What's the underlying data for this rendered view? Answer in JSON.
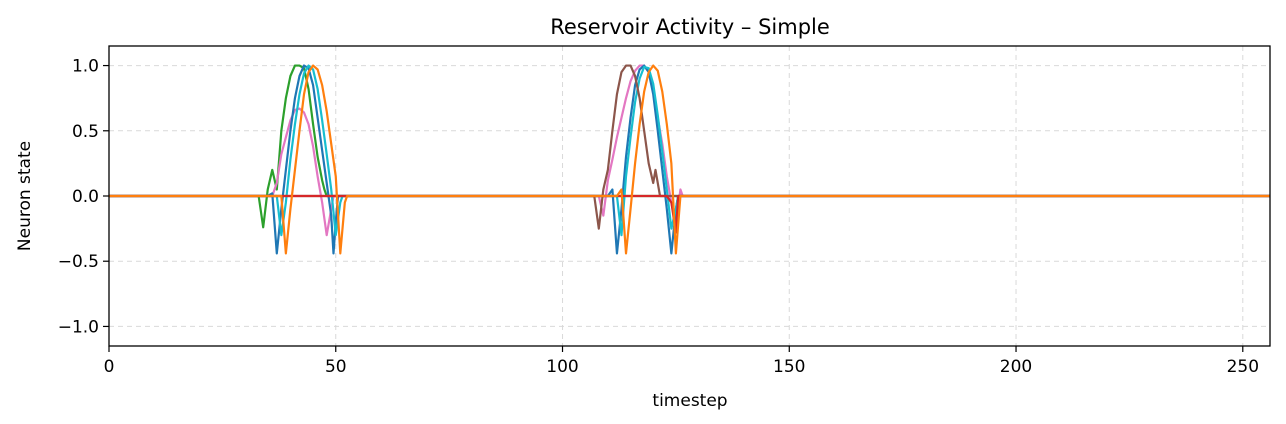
{
  "chart_data": {
    "type": "line",
    "title": "Reservoir Activity – Simple",
    "xlabel": "timestep",
    "ylabel": "Neuron state",
    "xlim": [
      0,
      256
    ],
    "ylim": [
      -1.15,
      1.15
    ],
    "xticks": [
      0,
      50,
      100,
      150,
      200,
      250
    ],
    "yticks": [
      -1.0,
      -0.5,
      0.0,
      0.5,
      1.0
    ],
    "ytick_labels": [
      "−1.0",
      "−0.5",
      "0.0",
      "0.5",
      "1.0"
    ],
    "grid": true,
    "legend": "none",
    "series": [
      {
        "color": "#2ca02c",
        "points": [
          [
            0,
            0
          ],
          [
            33,
            0
          ],
          [
            34,
            -0.24
          ],
          [
            35,
            0.05
          ],
          [
            36,
            0.2
          ],
          [
            37,
            0.05
          ],
          [
            38,
            0.5
          ],
          [
            39,
            0.75
          ],
          [
            40,
            0.92
          ],
          [
            41,
            1.0
          ],
          [
            42,
            1.0
          ],
          [
            43,
            0.98
          ],
          [
            44,
            0.82
          ],
          [
            45,
            0.55
          ],
          [
            46,
            0.3
          ],
          [
            47,
            0.12
          ],
          [
            47.5,
            0.05
          ],
          [
            48,
            0
          ],
          [
            256,
            0
          ]
        ]
      },
      {
        "color": "#e377c2",
        "points": [
          [
            0,
            0
          ],
          [
            36,
            0
          ],
          [
            37,
            0.1
          ],
          [
            38,
            0.32
          ],
          [
            39,
            0.45
          ],
          [
            40,
            0.58
          ],
          [
            41,
            0.66
          ],
          [
            42,
            0.67
          ],
          [
            43,
            0.64
          ],
          [
            44,
            0.55
          ],
          [
            45,
            0.38
          ],
          [
            46,
            0.15
          ],
          [
            47,
            -0.05
          ],
          [
            48,
            -0.3
          ],
          [
            49,
            -0.1
          ],
          [
            49.5,
            0
          ],
          [
            108,
            0
          ],
          [
            109,
            -0.15
          ],
          [
            110,
            0.12
          ],
          [
            111,
            0.28
          ],
          [
            112,
            0.45
          ],
          [
            113,
            0.6
          ],
          [
            114,
            0.75
          ],
          [
            115,
            0.88
          ],
          [
            116,
            0.96
          ],
          [
            117,
            1.0
          ],
          [
            118,
            1.0
          ],
          [
            119,
            0.95
          ],
          [
            120,
            0.8
          ],
          [
            121,
            0.6
          ],
          [
            122,
            0.4
          ],
          [
            123,
            0.15
          ],
          [
            124,
            -0.05
          ],
          [
            125,
            -0.22
          ],
          [
            126,
            0.05
          ],
          [
            126.5,
            0
          ],
          [
            256,
            0
          ]
        ]
      },
      {
        "color": "#1f77b4",
        "points": [
          [
            0,
            0
          ],
          [
            35,
            0
          ],
          [
            36,
            0.02
          ],
          [
            37,
            -0.44
          ],
          [
            38,
            -0.1
          ],
          [
            39,
            0.2
          ],
          [
            40,
            0.5
          ],
          [
            41,
            0.75
          ],
          [
            42,
            0.92
          ],
          [
            43,
            1.0
          ],
          [
            44,
            0.98
          ],
          [
            45,
            0.85
          ],
          [
            46,
            0.6
          ],
          [
            47,
            0.35
          ],
          [
            48,
            0.1
          ],
          [
            49,
            -0.15
          ],
          [
            49.5,
            -0.44
          ],
          [
            50,
            -0.2
          ],
          [
            50.5,
            0
          ],
          [
            110,
            0
          ],
          [
            111,
            0.05
          ],
          [
            112,
            -0.44
          ],
          [
            113,
            -0.1
          ],
          [
            114,
            0.3
          ],
          [
            115,
            0.6
          ],
          [
            116,
            0.85
          ],
          [
            117,
            0.97
          ],
          [
            118,
            1.0
          ],
          [
            119,
            0.95
          ],
          [
            120,
            0.78
          ],
          [
            121,
            0.5
          ],
          [
            122,
            0.2
          ],
          [
            123,
            -0.1
          ],
          [
            124,
            -0.44
          ],
          [
            125,
            -0.1
          ],
          [
            125.5,
            0
          ],
          [
            256,
            0
          ]
        ]
      },
      {
        "color": "#17becf",
        "points": [
          [
            0,
            0
          ],
          [
            37,
            0
          ],
          [
            38,
            -0.3
          ],
          [
            39,
            -0.05
          ],
          [
            40,
            0.28
          ],
          [
            41,
            0.55
          ],
          [
            42,
            0.78
          ],
          [
            43,
            0.94
          ],
          [
            44,
            1.0
          ],
          [
            45,
            0.97
          ],
          [
            46,
            0.82
          ],
          [
            47,
            0.58
          ],
          [
            48,
            0.32
          ],
          [
            49,
            0.05
          ],
          [
            50,
            -0.3
          ],
          [
            51,
            -0.05
          ],
          [
            51.5,
            0
          ],
          [
            112,
            0
          ],
          [
            113,
            -0.3
          ],
          [
            114,
            0.15
          ],
          [
            115,
            0.45
          ],
          [
            116,
            0.72
          ],
          [
            117,
            0.9
          ],
          [
            118,
            0.99
          ],
          [
            119,
            0.98
          ],
          [
            120,
            0.86
          ],
          [
            121,
            0.62
          ],
          [
            122,
            0.34
          ],
          [
            123,
            0.05
          ],
          [
            124,
            -0.25
          ],
          [
            125,
            -0.1
          ],
          [
            125.5,
            0
          ],
          [
            256,
            0
          ]
        ]
      },
      {
        "color": "#8c564b",
        "points": [
          [
            0,
            0
          ],
          [
            107,
            0
          ],
          [
            108,
            -0.25
          ],
          [
            109,
            0.05
          ],
          [
            110,
            0.2
          ],
          [
            111,
            0.5
          ],
          [
            112,
            0.78
          ],
          [
            113,
            0.95
          ],
          [
            114,
            1.0
          ],
          [
            115,
            1.0
          ],
          [
            116,
            0.92
          ],
          [
            117,
            0.75
          ],
          [
            118,
            0.5
          ],
          [
            119,
            0.25
          ],
          [
            120,
            0.1
          ],
          [
            120.5,
            0.2
          ],
          [
            121,
            0.1
          ],
          [
            121.5,
            0
          ],
          [
            256,
            0
          ]
        ]
      },
      {
        "color": "#d62728",
        "points": [
          [
            0,
            0
          ],
          [
            123,
            0
          ],
          [
            124,
            -0.05
          ],
          [
            125,
            -0.28
          ],
          [
            125.5,
            0
          ],
          [
            256,
            0
          ]
        ]
      },
      {
        "color": "#ff7f0e",
        "points": [
          [
            0,
            0
          ],
          [
            38,
            0
          ],
          [
            39,
            -0.44
          ],
          [
            40,
            -0.1
          ],
          [
            41,
            0.2
          ],
          [
            42,
            0.5
          ],
          [
            43,
            0.78
          ],
          [
            44,
            0.95
          ],
          [
            45,
            1.0
          ],
          [
            46,
            0.97
          ],
          [
            47,
            0.85
          ],
          [
            48,
            0.65
          ],
          [
            49,
            0.4
          ],
          [
            50,
            0.15
          ],
          [
            51,
            -0.44
          ],
          [
            52,
            -0.05
          ],
          [
            52.5,
            0
          ],
          [
            112,
            0
          ],
          [
            113,
            0.05
          ],
          [
            114,
            -0.44
          ],
          [
            115,
            -0.1
          ],
          [
            116,
            0.25
          ],
          [
            117,
            0.55
          ],
          [
            118,
            0.8
          ],
          [
            119,
            0.95
          ],
          [
            120,
            1.0
          ],
          [
            121,
            0.96
          ],
          [
            122,
            0.8
          ],
          [
            123,
            0.55
          ],
          [
            124,
            0.25
          ],
          [
            125,
            -0.44
          ],
          [
            126,
            0
          ],
          [
            256,
            0
          ]
        ]
      }
    ]
  }
}
